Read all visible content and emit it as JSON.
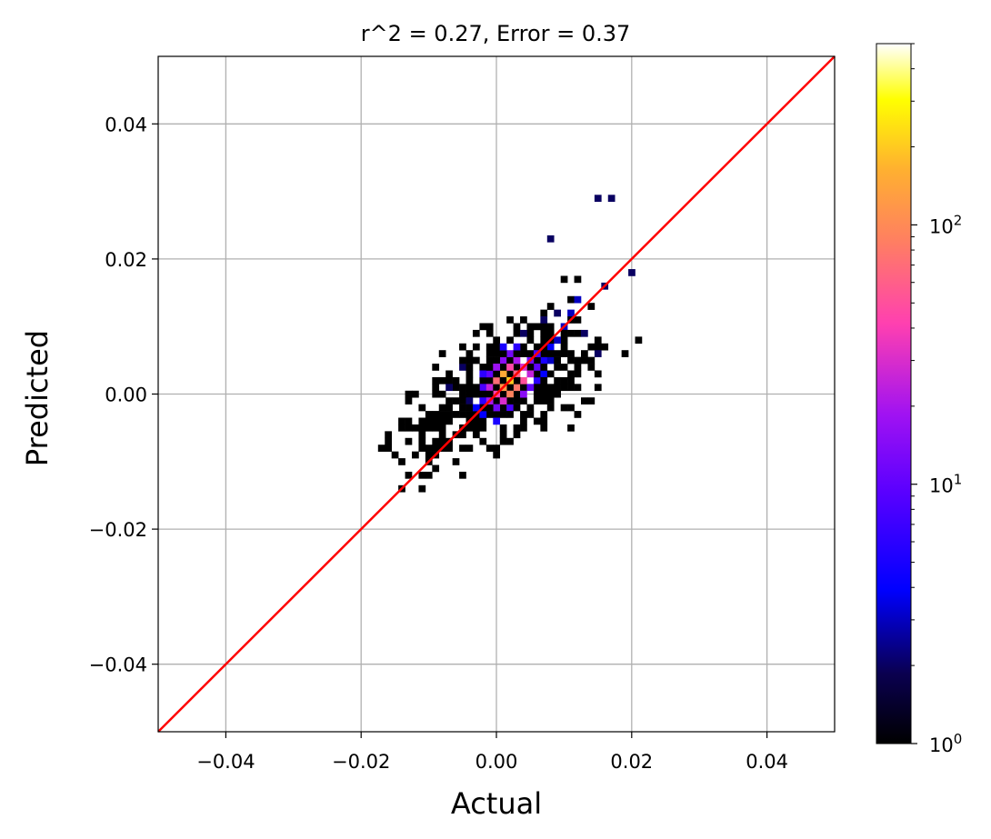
{
  "chart_data": {
    "type": "heatmap",
    "title": "r^2 = 0.27, Error = 0.37",
    "xlabel": "Actual",
    "ylabel": "Predicted",
    "xlim": [
      -0.05,
      0.05
    ],
    "ylim": [
      -0.05,
      0.05
    ],
    "x_ticks": [
      -0.04,
      -0.02,
      0.0,
      0.02,
      0.04
    ],
    "x_tick_labels": [
      "−0.04",
      "−0.02",
      "0.00",
      "0.02",
      "0.04"
    ],
    "y_ticks": [
      -0.04,
      -0.02,
      0.0,
      0.02,
      0.04
    ],
    "y_tick_labels": [
      "−0.04",
      "−0.02",
      "0.00",
      "0.02",
      "0.04"
    ],
    "grid": true,
    "bin_width": 0.001,
    "colormap": "gnuplot2",
    "colorbar": {
      "scale": "log",
      "range": [
        1,
        500
      ],
      "ticks": [
        1,
        10,
        100
      ],
      "tick_bases": [
        "10",
        "10",
        "10"
      ],
      "tick_exponents": [
        "0",
        "1",
        "2"
      ]
    },
    "reference_line": {
      "from": [
        -0.05,
        -0.05
      ],
      "to": [
        0.05,
        0.05
      ],
      "color": "#ff0000"
    },
    "bins_count_gt1": [
      [
        -0.002,
        -0.001,
        6
      ],
      [
        0.0,
        0.0,
        40
      ],
      [
        0.001,
        0.001,
        120
      ],
      [
        0.002,
        0.002,
        200
      ],
      [
        0.001,
        0.003,
        150
      ],
      [
        0.002,
        0.0,
        90
      ],
      [
        0.0,
        0.002,
        70
      ],
      [
        -0.001,
        0.001,
        25
      ],
      [
        0.003,
        0.001,
        80
      ],
      [
        0.003,
        0.003,
        60
      ],
      [
        0.004,
        0.002,
        50
      ],
      [
        0.001,
        -0.001,
        30
      ],
      [
        -0.001,
        -0.001,
        20
      ],
      [
        0.0,
        -0.002,
        12
      ],
      [
        -0.002,
        0.001,
        8
      ],
      [
        0.004,
        0.004,
        30
      ],
      [
        0.005,
        0.003,
        25
      ],
      [
        0.002,
        0.004,
        45
      ],
      [
        0.003,
        0.005,
        20
      ],
      [
        0.005,
        0.005,
        12
      ],
      [
        0.006,
        0.004,
        10
      ],
      [
        0.001,
        0.005,
        15
      ],
      [
        0.0,
        0.004,
        18
      ],
      [
        -0.001,
        0.003,
        10
      ],
      [
        -0.002,
        0.003,
        6
      ],
      [
        0.006,
        0.006,
        8
      ],
      [
        0.007,
        0.005,
        5
      ],
      [
        0.002,
        -0.002,
        8
      ],
      [
        -0.003,
        -0.002,
        4
      ],
      [
        0.004,
        0.0,
        15
      ],
      [
        0.005,
        0.001,
        10
      ],
      [
        0.002,
        0.006,
        12
      ],
      [
        0.003,
        0.007,
        6
      ],
      [
        0.008,
        0.007,
        4
      ],
      [
        0.001,
        0.007,
        5
      ],
      [
        -0.002,
        -0.003,
        4
      ],
      [
        0.0,
        -0.004,
        5
      ],
      [
        0.006,
        0.002,
        6
      ],
      [
        0.007,
        0.003,
        4
      ],
      [
        0.008,
        0.005,
        3
      ],
      [
        0.009,
        0.008,
        3
      ],
      [
        0.01,
        0.01,
        3
      ],
      [
        0.011,
        0.012,
        3
      ],
      [
        0.012,
        0.014,
        3
      ],
      [
        0.007,
        0.011,
        2
      ],
      [
        0.013,
        0.009,
        2
      ],
      [
        0.015,
        0.006,
        2
      ],
      [
        -0.004,
        -0.001,
        2
      ],
      [
        -0.007,
        0.001,
        2
      ],
      [
        -0.005,
        0.004,
        2
      ],
      [
        0.004,
        0.009,
        2
      ],
      [
        0.009,
        0.012,
        2
      ],
      [
        0.016,
        0.016,
        2
      ],
      [
        0.02,
        0.018,
        2
      ],
      [
        0.015,
        0.029,
        2
      ],
      [
        0.017,
        0.029,
        2
      ],
      [
        0.008,
        0.023,
        2
      ]
    ]
  }
}
